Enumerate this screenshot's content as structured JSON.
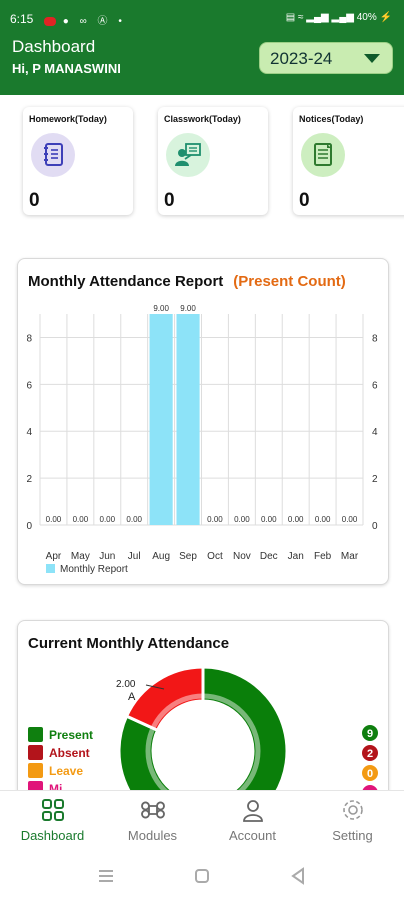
{
  "status_bar": {
    "time": "6:15",
    "left_icons": [
      "jio-icon",
      "location-icon",
      "voicemail-icon",
      "a-icon",
      "dot-icon"
    ],
    "battery": "40%"
  },
  "header": {
    "title": "Dashboard",
    "greeting": "Hi, P MANASWINI",
    "year_selected": "2023-24"
  },
  "cards": [
    {
      "label": "Homework(Today)",
      "count": "0",
      "icon": "homework-icon"
    },
    {
      "label": "Classwork(Today)",
      "count": "0",
      "icon": "classwork-icon"
    },
    {
      "label": "Notices(Today)",
      "count": "0",
      "icon": "notices-icon"
    }
  ],
  "attendance_chart": {
    "title": "Monthly Attendance Report",
    "subtitle": "(Present Count)"
  },
  "chart_data": {
    "type": "bar",
    "categories": [
      "Apr",
      "May",
      "Jun",
      "Jul",
      "Aug",
      "Sep",
      "Oct",
      "Nov",
      "Dec",
      "Jan",
      "Feb",
      "Mar"
    ],
    "series": [
      {
        "name": "Monthly Report",
        "values": [
          0,
          0,
          0,
          0,
          9,
          9,
          0,
          0,
          0,
          0,
          0,
          0
        ]
      }
    ],
    "data_labels": [
      "0.00",
      "0.00",
      "0.00",
      "0.00",
      "9.00",
      "9.00",
      "0.00",
      "0.00",
      "0.00",
      "0.00",
      "0.00",
      "0.00"
    ],
    "y_ticks": [
      "0",
      "2",
      "4",
      "6",
      "8"
    ],
    "ylim": [
      0,
      9
    ],
    "legend": "bottom-left",
    "grid": true,
    "bar_color": "#8de3f8"
  },
  "current_attendance": {
    "title": "Current Monthly Attendance",
    "donut_label_value": "2.00",
    "donut_label_letter": "A",
    "legend": [
      {
        "label": "Present",
        "color": "#0f7f0f"
      },
      {
        "label": "Absent",
        "color": "#b3141b"
      },
      {
        "label": "Leave",
        "color": "#f39a13"
      },
      {
        "label": "Mi",
        "color": "#e0157a"
      }
    ],
    "badges": [
      {
        "value": "9",
        "color": "#0f7f0f"
      },
      {
        "value": "2",
        "color": "#b3141b"
      },
      {
        "value": "0",
        "color": "#f39a13"
      },
      {
        "value": "",
        "color": "#e0157a"
      }
    ],
    "slices": [
      {
        "label": "Present",
        "value": 9,
        "color": "#0a7f0a"
      },
      {
        "label": "Absent",
        "value": 2,
        "color": "#f21717"
      }
    ]
  },
  "bottom_nav": [
    {
      "label": "Dashboard",
      "icon": "dashboard-icon",
      "active": true
    },
    {
      "label": "Modules",
      "icon": "modules-icon",
      "active": false
    },
    {
      "label": "Account",
      "icon": "account-icon",
      "active": false
    },
    {
      "label": "Setting",
      "icon": "settings-icon",
      "active": false
    }
  ],
  "colors": {
    "header_bg": "#1a7a2d",
    "accent_orange": "#e36a13",
    "year_select_bg": "#c9ecb1"
  }
}
